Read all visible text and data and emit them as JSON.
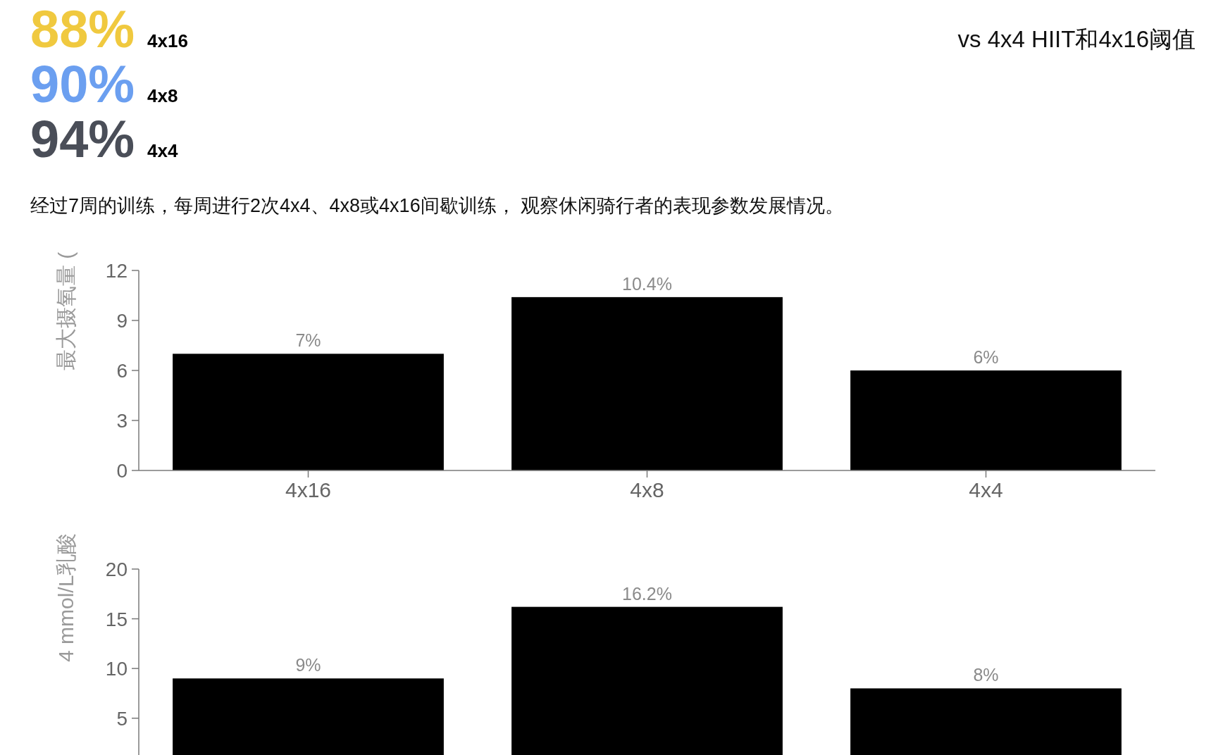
{
  "chart_data": [
    {
      "type": "other",
      "subtitle": "vs 4x4 HIIT和4x16阈值",
      "categories": [
        "4x16",
        "4x8",
        "4x4"
      ],
      "value_labels": [
        "88%",
        "90%",
        "94%"
      ],
      "colors": [
        "#f0c93f",
        "#6b9ff0",
        "#4a4e58"
      ],
      "annotations": [
        "经过7周的训练，每周进行2次4x4、4x8或4x16间歇训练， 观察休闲骑行者的表现参数发展情况。"
      ]
    },
    {
      "type": "bar",
      "categories": [
        "4x16",
        "4x8",
        "4x4"
      ],
      "values": [
        7,
        10.4,
        6
      ],
      "value_labels": [
        "7%",
        "10.4%",
        "6%"
      ],
      "color": "#000000",
      "ylabel": "最大摄氧量 (",
      "ylim": [
        0,
        12
      ],
      "yticks": [
        0,
        3,
        6,
        9,
        12
      ]
    },
    {
      "type": "bar",
      "categories": [
        null,
        null,
        null
      ],
      "values": [
        9,
        16.2,
        8
      ],
      "value_labels": [
        "9%",
        "16.2%",
        "8%"
      ],
      "color": "#000000",
      "ylabel": "4 mmol/L乳酸",
      "ylim": [
        1.3,
        20
      ],
      "yticks": [
        5,
        10,
        15,
        20
      ]
    }
  ]
}
